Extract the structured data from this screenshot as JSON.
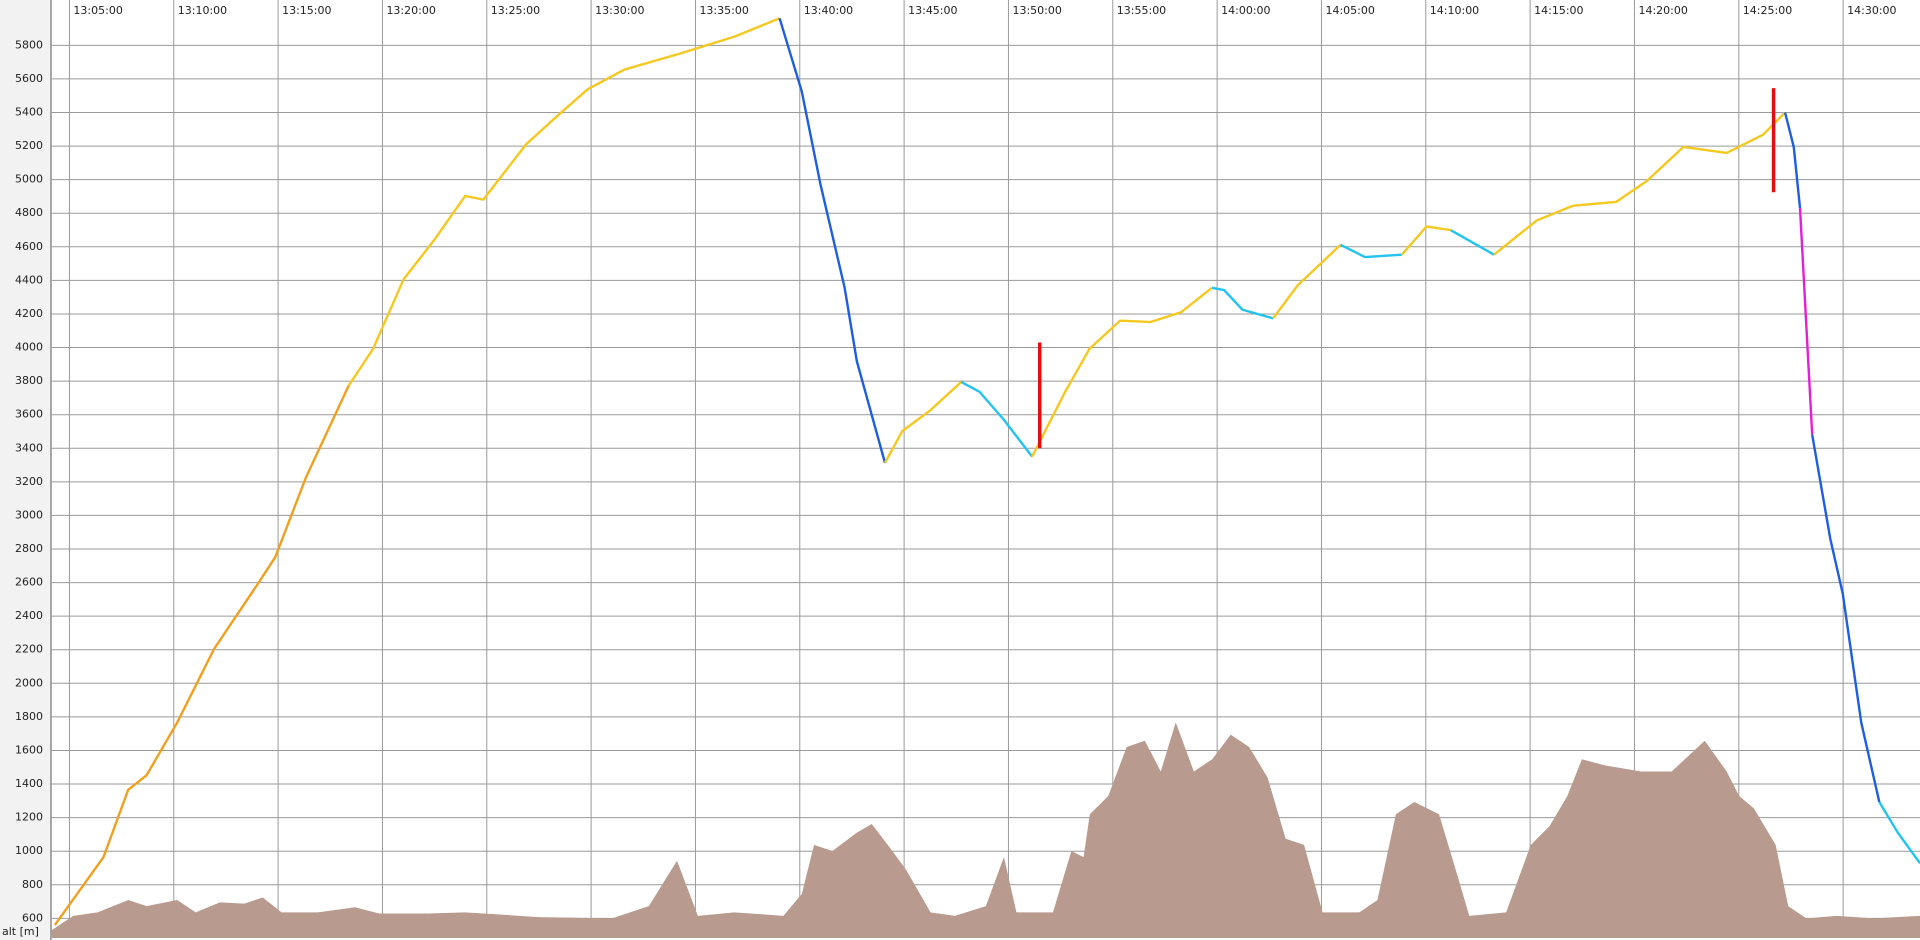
{
  "chart_data": {
    "type": "line",
    "y_axis_label": "alt [m]",
    "xlim": [
      "13:04:07",
      "14:33:41"
    ],
    "xticks": [
      "13:05:00",
      "13:10:00",
      "13:15:00",
      "13:20:00",
      "13:25:00",
      "13:30:00",
      "13:35:00",
      "13:40:00",
      "13:45:00",
      "13:50:00",
      "13:55:00",
      "14:00:00",
      "14:05:00",
      "14:10:00",
      "14:15:00",
      "14:20:00",
      "14:25:00",
      "14:30:00"
    ],
    "ylim": [
      483,
      6070
    ],
    "yticks": [
      600,
      800,
      1000,
      1200,
      1400,
      1600,
      1800,
      2000,
      2200,
      2400,
      2600,
      2800,
      3000,
      3200,
      3400,
      3600,
      3800,
      4000,
      4200,
      4400,
      4600,
      4800,
      5000,
      5200,
      5400,
      5600,
      5800
    ],
    "grid": true,
    "terrain": {
      "color": "#b89a8e",
      "x": [
        "13:04:07",
        "13:05:11",
        "13:06:21",
        "13:07:49",
        "13:08:42",
        "13:10:10",
        "13:11:03",
        "13:12:13",
        "13:13:23",
        "13:14:16",
        "13:15:10",
        "13:16:55",
        "13:18:41",
        "13:19:51",
        "13:22:12",
        "13:23:58",
        "13:25:43",
        "13:27:29",
        "13:31:00",
        "13:32:46",
        "13:34:07",
        "13:35:07",
        "13:36:52",
        "13:39:13",
        "13:40:06",
        "13:40:41",
        "13:41:34",
        "13:42:44",
        "13:43:27",
        "13:44:13",
        "13:45:05",
        "13:46:16",
        "13:47:26",
        "13:48:55",
        "13:49:47",
        "13:50:23",
        "13:52:08",
        "13:53:01",
        "13:53:36",
        "13:53:54",
        "13:54:47",
        "13:55:40",
        "13:56:32",
        "13:57:18",
        "13:58:01",
        "13:58:53",
        "13:59:46",
        "14:00:39",
        "14:01:32",
        "14:02:25",
        "14:03:17",
        "14:04:10",
        "14:05:03",
        "14:06:49",
        "14:07:41",
        "14:08:34",
        "14:09:27",
        "14:10:38",
        "14:11:31",
        "14:12:05",
        "14:13:51",
        "14:15:02",
        "14:15:55",
        "14:16:47",
        "14:17:29",
        "14:18:33",
        "14:20:19",
        "14:21:47",
        "14:23:22",
        "14:24:25",
        "14:25:01",
        "14:25:43",
        "14:26:46",
        "14:27:22",
        "14:28:14",
        "14:29:42",
        "14:31:28",
        "14:33:41"
      ],
      "values": [
        527,
        615,
        636,
        709,
        673,
        709,
        636,
        695,
        688,
        724,
        636,
        636,
        666,
        629,
        629,
        636,
        622,
        607,
        600,
        673,
        943,
        615,
        636,
        615,
        746,
        1038,
        1001,
        1111,
        1162,
        1038,
        892,
        636,
        615,
        673,
        965,
        636,
        636,
        1001,
        965,
        1220,
        1329,
        1621,
        1658,
        1475,
        1767,
        1475,
        1548,
        1694,
        1621,
        1439,
        1074,
        1038,
        636,
        636,
        709,
        1220,
        1293,
        1220,
        855,
        615,
        636,
        1038,
        1147,
        1329,
        1548,
        1512,
        1475,
        1475,
        1658,
        1475,
        1329,
        1256,
        1038,
        673,
        600,
        615,
        600,
        615
      ]
    },
    "series": [
      {
        "color": "#f0a020",
        "x": [
          "13:04:18",
          "13:06:38",
          "13:07:49",
          "13:08:42",
          "13:10:10",
          "13:11:56",
          "13:13:59",
          "13:14:52",
          "13:16:20",
          "13:18:23"
        ],
        "values": [
          560,
          965,
          1366,
          1453,
          1767,
          2205,
          2584,
          2752,
          3226,
          3773
        ]
      },
      {
        "color": "#f5c820",
        "x": [
          "13:18:23",
          "13:19:33",
          "13:21:01",
          "13:22:29",
          "13:23:58",
          "13:24:50",
          "13:26:53",
          "13:28:22",
          "13:29:50",
          "13:31:35",
          "13:34:14",
          "13:36:52",
          "13:39:02"
        ],
        "values": [
          3773,
          3992,
          4407,
          4641,
          4903,
          4881,
          5210,
          5378,
          5538,
          5655,
          5750,
          5852,
          5961
        ]
      },
      {
        "color": "#1e5ee0",
        "x": [
          "13:39:02",
          "13:40:06",
          "13:40:59",
          "13:42:09",
          "13:42:44",
          "13:44:05"
        ],
        "values": [
          5961,
          5523,
          4976,
          4356,
          3919,
          3313
        ]
      },
      {
        "color": "#f5c820",
        "x": [
          "13:44:05",
          "13:44:55",
          "13:46:16",
          "13:47:44"
        ],
        "values": [
          3313,
          3503,
          3627,
          3795
        ]
      },
      {
        "color": "#22c4ee",
        "x": [
          "13:47:44",
          "13:48:37",
          "13:49:47",
          "13:51:08"
        ],
        "values": [
          3795,
          3736,
          3569,
          3350
        ]
      },
      {
        "color": "#f5c820",
        "x": [
          "13:51:08",
          "13:52:43",
          "13:53:53",
          "13:55:21",
          "13:56:49",
          "13:58:17",
          "13:59:45"
        ],
        "values": [
          3350,
          3736,
          3992,
          4160,
          4152,
          4211,
          4356
        ]
      },
      {
        "color": "#22c4ee",
        "x": [
          "13:59:45",
          "14:00:20",
          "14:01:13",
          "14:02:41"
        ],
        "values": [
          4356,
          4342,
          4225,
          4174
        ]
      },
      {
        "color": "#f5c820",
        "x": [
          "14:02:41",
          "14:03:52",
          "14:05:55"
        ],
        "values": [
          4174,
          4371,
          4612
        ]
      },
      {
        "color": "#22c4ee",
        "x": [
          "14:05:55",
          "14:07:05",
          "14:08:51"
        ],
        "values": [
          4612,
          4539,
          4553
        ]
      },
      {
        "color": "#f5c820",
        "x": [
          "14:08:51",
          "14:10:02",
          "14:11:12"
        ],
        "values": [
          4553,
          4721,
          4699
        ]
      },
      {
        "color": "#22c4ee",
        "x": [
          "14:11:12",
          "14:13:16"
        ],
        "values": [
          4699,
          4553
        ]
      },
      {
        "color": "#f5c820",
        "x": [
          "14:13:16",
          "14:15:19",
          "14:17:04",
          "14:19:07",
          "14:20:35",
          "14:22:21",
          "14:24:25",
          "14:26:10",
          "14:27:13"
        ],
        "values": [
          4553,
          4757,
          4845,
          4867,
          4991,
          5195,
          5159,
          5268,
          5400
        ]
      },
      {
        "color": "#1e5ee0",
        "x": [
          "14:27:13",
          "14:27:38",
          "14:27:56"
        ],
        "values": [
          5400,
          5195,
          4831
        ]
      },
      {
        "color": "#e020d8",
        "x": [
          "14:27:56",
          "14:28:31"
        ],
        "values": [
          4831,
          3481
        ]
      },
      {
        "color": "#1e5ee0",
        "x": [
          "14:28:31",
          "14:29:23",
          "14:29:59",
          "14:30:52",
          "14:31:44"
        ],
        "values": [
          3481,
          2861,
          2533,
          1767,
          1293
        ]
      },
      {
        "color": "#22c4ee",
        "x": [
          "14:31:44",
          "14:32:37",
          "14:33:41"
        ],
        "values": [
          1293,
          1111,
          928
        ]
      }
    ],
    "markers": [
      {
        "color": "#e01010",
        "x": "13:51:30",
        "from": 3400,
        "to": 4030
      },
      {
        "color": "#e01010",
        "x": "14:26:40",
        "from": 4925,
        "to": 5545
      }
    ]
  }
}
